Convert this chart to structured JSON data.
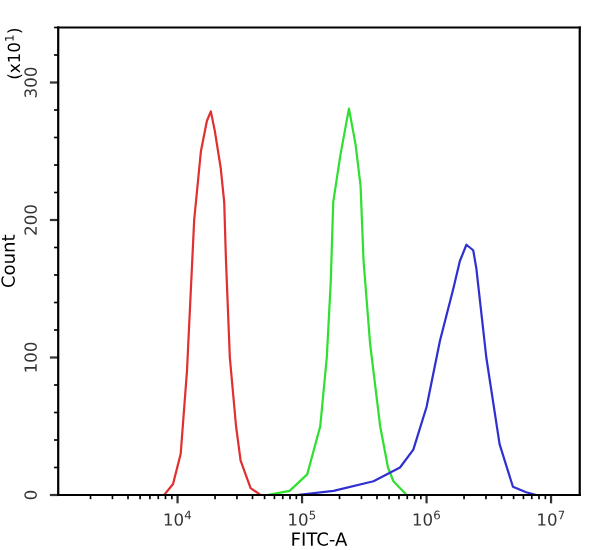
{
  "chart_data": {
    "type": "line",
    "xlabel": "FITC-A",
    "ylabel": "Count",
    "annotations": [
      "(x10$^{1}$)"
    ],
    "log": "x",
    "xlim": [
      1100,
      17000000
    ],
    "ylim": [
      0,
      340
    ],
    "xticks": [
      {
        "value": 10000,
        "label": "10$^{4}$"
      },
      {
        "value": 100000,
        "label": "10$^{5}$"
      },
      {
        "value": 1000000,
        "label": "10$^{6}$"
      },
      {
        "value": 10000000,
        "label": "10$^{7}$"
      }
    ],
    "yticks": [
      0,
      100,
      200,
      300
    ],
    "grid": false,
    "legend": false,
    "marker": "none",
    "line_style": "solid",
    "series": [
      {
        "color": "#e03030",
        "x": [
          7800,
          9200,
          10600,
          11900,
          13600,
          15400,
          17200,
          18500,
          19900,
          22200,
          23700,
          24500,
          26300,
          29500,
          32100,
          38600,
          46500
        ],
        "values": [
          0,
          8,
          30,
          90,
          200,
          250,
          272,
          279,
          265,
          238,
          213,
          170,
          100,
          50,
          25,
          5,
          0
        ]
      },
      {
        "color": "#30e030",
        "x": [
          52500,
          79400,
          110000,
          140000,
          158000,
          170000,
          178000,
          203000,
          238000,
          269000,
          295000,
          312000,
          352000,
          424000,
          490000,
          542000,
          692000
        ],
        "values": [
          0,
          3,
          15,
          50,
          100,
          155,
          213,
          247,
          281,
          255,
          225,
          170,
          110,
          50,
          20,
          10,
          0
        ]
      },
      {
        "color": "#3030d0",
        "x": [
          91000,
          179000,
          375000,
          612000,
          783000,
          1000000,
          1280000,
          1640000,
          1850000,
          2090000,
          2370000,
          2510000,
          3020000,
          3860000,
          4940000,
          6310000,
          7590000
        ],
        "values": [
          0,
          3,
          10,
          20,
          33,
          64,
          112,
          150,
          170,
          182,
          178,
          165,
          100,
          37,
          6,
          2,
          0
        ]
      }
    ]
  }
}
